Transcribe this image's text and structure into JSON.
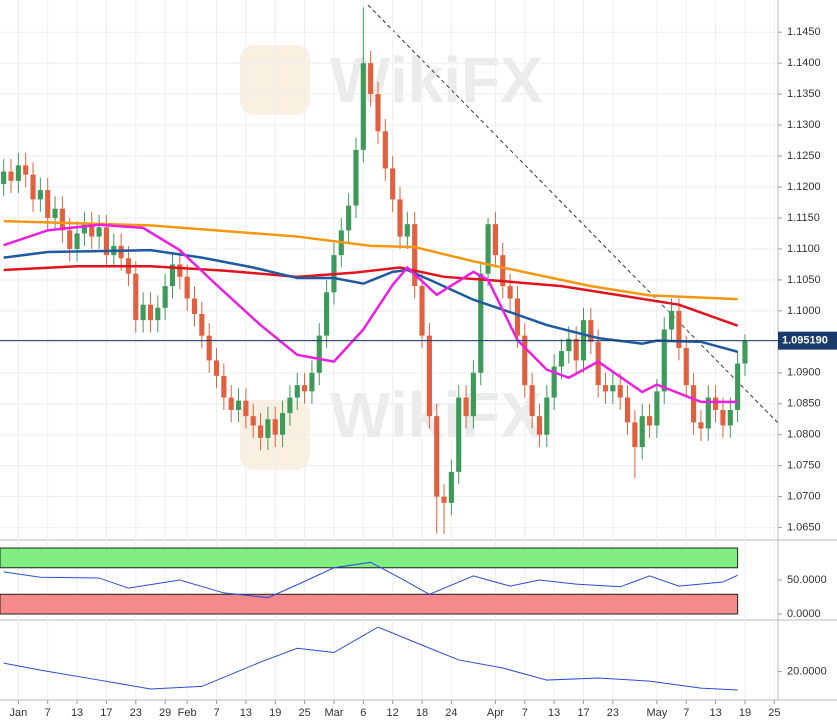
{
  "chart_data": [
    {
      "type": "candlestick",
      "watermark": "WikiFX",
      "categories": [
        null,
        null,
        "Jan",
        null,
        null,
        null,
        "7",
        null,
        null,
        null,
        "13",
        null,
        null,
        null,
        "17",
        null,
        null,
        null,
        "23",
        null,
        null,
        null,
        "29",
        null,
        null,
        "Feb",
        null,
        null,
        null,
        "7",
        null,
        null,
        null,
        "13",
        null,
        null,
        null,
        "19",
        null,
        null,
        null,
        "25",
        null,
        null,
        null,
        "Mar",
        null,
        null,
        null,
        "6",
        null,
        null,
        null,
        "12",
        null,
        null,
        null,
        "18",
        null,
        null,
        null,
        "24",
        null,
        null,
        null,
        null,
        null,
        "Apr",
        null,
        null,
        null,
        "7",
        null,
        null,
        null,
        "13",
        null,
        null,
        null,
        "17",
        null,
        null,
        null,
        "23",
        null,
        null,
        null,
        null,
        null,
        "May",
        null,
        null,
        null,
        "7",
        null,
        null,
        null,
        "13",
        null,
        null,
        null,
        "19",
        null,
        null,
        null,
        "25"
      ],
      "open": [
        1.1205,
        1.1225,
        1.121,
        1.1235,
        1.122,
        1.118,
        1.1195,
        1.115,
        1.1165,
        1.113,
        1.11,
        1.1125,
        1.114,
        1.112,
        1.1135,
        1.109,
        1.1105,
        1.1085,
        1.106,
        1.0985,
        1.101,
        1.0985,
        1.1005,
        1.104,
        1.1075,
        1.1055,
        1.102,
        1.0995,
        1.096,
        1.092,
        1.0895,
        1.086,
        1.084,
        1.0855,
        1.083,
        1.0815,
        1.0795,
        1.0825,
        1.08,
        1.0835,
        1.086,
        1.088,
        1.087,
        1.09,
        1.096,
        1.103,
        1.109,
        1.113,
        1.117,
        1.126,
        1.14,
        1.135,
        1.129,
        1.123,
        1.118,
        1.112,
        1.114,
        1.104,
        1.096,
        1.083,
        1.07,
        1.069,
        1.074,
        1.086,
        1.083,
        1.09,
        1.106,
        1.114,
        1.109,
        1.104,
        1.102,
        1.096,
        1.088,
        1.083,
        1.08,
        1.086,
        1.091,
        1.0935,
        1.0955,
        1.092,
        1.0985,
        1.095,
        1.088,
        1.087,
        1.088,
        1.086,
        1.082,
        1.078,
        1.083,
        1.0815,
        1.087,
        1.097,
        1.1,
        1.094,
        1.088,
        1.082,
        1.081,
        1.086,
        1.084,
        1.0815,
        1.084,
        1.0915,
        null,
        null,
        null,
        null
      ],
      "high": [
        1.1245,
        1.1245,
        1.1255,
        1.1255,
        1.124,
        1.1215,
        1.1215,
        1.1185,
        1.1185,
        1.115,
        1.1145,
        1.116,
        1.116,
        1.1155,
        1.1155,
        1.1125,
        1.1125,
        1.1105,
        1.108,
        1.103,
        1.103,
        1.1025,
        1.106,
        1.1095,
        1.1095,
        1.1075,
        1.104,
        1.1015,
        1.098,
        1.094,
        1.0915,
        1.088,
        1.0875,
        1.0875,
        1.085,
        1.0835,
        1.0845,
        1.0845,
        1.0855,
        1.088,
        1.09,
        1.09,
        1.092,
        1.098,
        1.105,
        1.111,
        1.115,
        1.119,
        1.128,
        1.149,
        1.142,
        1.137,
        1.131,
        1.125,
        1.12,
        1.116,
        1.116,
        1.106,
        1.098,
        1.085,
        1.072,
        1.076,
        1.088,
        1.088,
        1.092,
        1.108,
        1.115,
        1.116,
        1.111,
        1.106,
        1.104,
        1.098,
        1.09,
        1.085,
        1.088,
        1.093,
        1.0955,
        1.0975,
        1.0975,
        1.1005,
        1.1005,
        1.097,
        1.09,
        1.09,
        1.09,
        1.088,
        1.084,
        1.085,
        1.085,
        1.089,
        1.099,
        1.102,
        1.102,
        1.096,
        1.09,
        1.084,
        1.088,
        1.088,
        1.086,
        1.086,
        1.0935,
        1.0962,
        null,
        null,
        null,
        null
      ],
      "low": [
        1.1185,
        1.119,
        1.119,
        1.12,
        1.116,
        1.116,
        1.113,
        1.113,
        1.111,
        1.108,
        1.108,
        1.1105,
        1.11,
        1.11,
        1.107,
        1.107,
        1.1065,
        1.104,
        1.0965,
        1.0965,
        1.0965,
        1.0965,
        1.0985,
        1.102,
        1.1035,
        1.1,
        1.0975,
        1.094,
        1.09,
        1.0875,
        1.084,
        1.082,
        1.082,
        1.081,
        1.0795,
        1.0775,
        1.0775,
        1.078,
        1.078,
        1.0815,
        1.084,
        1.085,
        1.085,
        1.088,
        1.094,
        1.101,
        1.107,
        1.111,
        1.115,
        1.124,
        1.133,
        1.127,
        1.121,
        1.116,
        1.11,
        1.11,
        1.102,
        1.094,
        1.081,
        1.064,
        1.064,
        1.067,
        1.072,
        1.081,
        1.081,
        1.088,
        1.104,
        1.107,
        1.102,
        1.1,
        1.094,
        1.086,
        1.081,
        1.078,
        1.078,
        1.084,
        1.089,
        1.0915,
        1.09,
        1.09,
        1.093,
        1.086,
        1.085,
        1.085,
        1.084,
        1.08,
        1.073,
        1.076,
        1.0795,
        1.0795,
        1.085,
        1.095,
        1.092,
        1.086,
        1.08,
        1.079,
        1.079,
        1.082,
        1.0795,
        1.0795,
        1.082,
        1.0895,
        null,
        null,
        null,
        null
      ],
      "close": [
        1.1225,
        1.121,
        1.1235,
        1.122,
        1.118,
        1.1195,
        1.115,
        1.1165,
        1.113,
        1.11,
        1.1125,
        1.114,
        1.112,
        1.1135,
        1.109,
        1.1105,
        1.1085,
        1.106,
        1.0985,
        1.101,
        1.0985,
        1.1005,
        1.104,
        1.1075,
        1.1055,
        1.102,
        1.0995,
        1.096,
        1.092,
        1.0895,
        1.086,
        1.084,
        1.0855,
        1.083,
        1.0815,
        1.0795,
        1.0825,
        1.08,
        1.0835,
        1.086,
        1.088,
        1.087,
        1.09,
        1.096,
        1.103,
        1.109,
        1.113,
        1.117,
        1.126,
        1.14,
        1.135,
        1.129,
        1.123,
        1.118,
        1.112,
        1.114,
        1.104,
        1.096,
        1.083,
        1.07,
        1.069,
        1.074,
        1.086,
        1.083,
        1.09,
        1.106,
        1.114,
        1.109,
        1.104,
        1.102,
        1.096,
        1.088,
        1.083,
        1.08,
        1.086,
        1.091,
        1.0935,
        1.0955,
        1.092,
        1.0985,
        1.095,
        1.088,
        1.087,
        1.088,
        1.086,
        1.082,
        1.078,
        1.083,
        1.0815,
        1.087,
        1.097,
        1.1,
        1.094,
        1.088,
        1.082,
        1.081,
        1.086,
        1.084,
        1.0815,
        1.084,
        1.0915,
        1.0952,
        null,
        null,
        null,
        null
      ],
      "up_color": "#3d9a5b",
      "down_color": "#e0603f",
      "series": [
        {
          "color": "#f5960f",
          "x": [
            0,
            20,
            40,
            50,
            56,
            64,
            72,
            80,
            88,
            100
          ],
          "values": [
            1.1145,
            1.1138,
            1.112,
            1.1105,
            1.1103,
            1.108,
            1.106,
            1.104,
            1.1025,
            1.1019
          ]
        },
        {
          "color": "#e0141e",
          "x": [
            0,
            10,
            20,
            30,
            40,
            48,
            54,
            60,
            68,
            76,
            84,
            92,
            100
          ],
          "values": [
            1.1066,
            1.1072,
            1.1072,
            1.1065,
            1.1055,
            1.1062,
            1.107,
            1.1055,
            1.1048,
            1.104,
            1.1025,
            1.101,
            1.0976
          ]
        },
        {
          "color": "#1f5aa0",
          "x": [
            0,
            6,
            20,
            27,
            34,
            40,
            45,
            49,
            53,
            55,
            59,
            64,
            68,
            74,
            81,
            87,
            89,
            95,
            100
          ],
          "values": [
            1.1086,
            1.1095,
            1.1098,
            1.1086,
            1.107,
            1.1053,
            1.1053,
            1.1044,
            1.1063,
            1.1066,
            1.1045,
            1.1018,
            1.1002,
            1.0977,
            1.0956,
            1.0947,
            1.0952,
            1.095,
            1.0934
          ]
        },
        {
          "color": "#ec1fe0",
          "x": [
            0,
            6,
            13,
            19,
            24,
            29,
            35,
            40,
            45,
            49,
            53,
            55,
            59,
            64,
            66,
            70,
            74,
            77,
            81,
            87,
            89,
            95,
            100
          ],
          "values": [
            1.1106,
            1.113,
            1.1139,
            1.1134,
            1.1098,
            1.1042,
            1.0977,
            1.0929,
            1.0918,
            1.097,
            1.1042,
            1.107,
            1.1026,
            1.1063,
            1.105,
            1.0953,
            1.0905,
            1.0892,
            1.0918,
            1.0869,
            1.0881,
            1.0853,
            1.0853
          ]
        }
      ],
      "current_price": {
        "value": 1.09519,
        "label": "1.095190"
      },
      "ylim": [
        1.063,
        1.1502
      ],
      "yticks": [
        {
          "value": 1.065,
          "label": "1.0650"
        },
        {
          "value": 1.07,
          "label": "1.0700"
        },
        {
          "value": 1.075,
          "label": "1.0750"
        },
        {
          "value": 1.08,
          "label": "1.0800"
        },
        {
          "value": 1.085,
          "label": "1.0850"
        },
        {
          "value": 1.09,
          "label": "1.0900"
        },
        {
          "value": 1.095,
          "label": "1.0950"
        },
        {
          "value": 1.1,
          "label": "1.1000"
        },
        {
          "value": 1.105,
          "label": "1.1050"
        },
        {
          "value": 1.11,
          "label": "1.1100"
        },
        {
          "value": 1.115,
          "label": "1.1150"
        },
        {
          "value": 1.12,
          "label": "1.1200"
        },
        {
          "value": 1.125,
          "label": "1.1250"
        },
        {
          "value": 1.13,
          "label": "1.1300"
        },
        {
          "value": 1.135,
          "label": "1.1350"
        },
        {
          "value": 1.14,
          "label": "1.1400"
        },
        {
          "value": 1.145,
          "label": "1.1450"
        }
      ],
      "grid": true
    },
    {
      "type": "line",
      "color": "#2a4bd7",
      "x": [
        0,
        5,
        13,
        17,
        24,
        30,
        36,
        40,
        45,
        50,
        54,
        58,
        64,
        69,
        73,
        78,
        84,
        88,
        92,
        98,
        100
      ],
      "values": [
        62,
        54,
        53,
        38,
        50,
        31,
        24,
        43,
        68,
        76,
        53,
        29,
        56,
        41,
        50,
        44,
        40,
        56,
        41,
        47,
        57
      ],
      "bands": [
        {
          "range": [
            68,
            97
          ],
          "color": "#80ee80"
        },
        {
          "range": [
            0,
            29
          ],
          "color": "#f58a8a"
        }
      ],
      "ylim": [
        0,
        100
      ],
      "yticks": [
        {
          "value": 50,
          "label": "50.0000"
        },
        {
          "value": 0,
          "label": "0.0000"
        }
      ]
    },
    {
      "type": "line",
      "color": "#2a4bd7",
      "x": [
        0,
        5,
        13,
        20,
        27,
        35,
        40,
        45,
        51,
        57,
        62,
        68,
        74,
        81,
        88,
        95,
        100
      ],
      "values": [
        24,
        20.7,
        16,
        11.8,
        13,
        24.5,
        31,
        29,
        41,
        32.5,
        25.5,
        21.7,
        16,
        17,
        15.5,
        12.2,
        11.3
      ],
      "ylim": [
        8,
        42
      ],
      "yticks": [
        {
          "value": 20,
          "label": "20.0000"
        }
      ]
    }
  ]
}
